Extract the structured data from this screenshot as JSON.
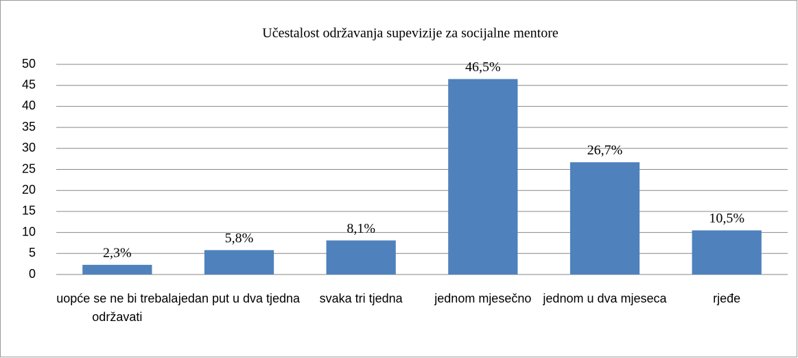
{
  "chart_data": {
    "type": "bar",
    "title": "Učestalost održavanja supevizije za socijalne mentore",
    "categories": [
      "uopće se ne bi trebala održavati",
      "jedan put u dva tjedna",
      "svaka tri tjedna",
      "jednom mjesečno",
      "jednom u dva mjeseca",
      "rjeđe"
    ],
    "values": [
      2.3,
      5.8,
      8.1,
      46.5,
      26.7,
      10.5
    ],
    "value_labels": [
      "2,3%",
      "5,8%",
      "8,1%",
      "46,5%",
      "26,7%",
      "10,5%"
    ],
    "color": "#4f81bd",
    "ylim": [
      0,
      50
    ],
    "yticks": [
      0,
      5,
      10,
      15,
      20,
      25,
      30,
      35,
      40,
      45,
      50
    ],
    "grid": true
  }
}
